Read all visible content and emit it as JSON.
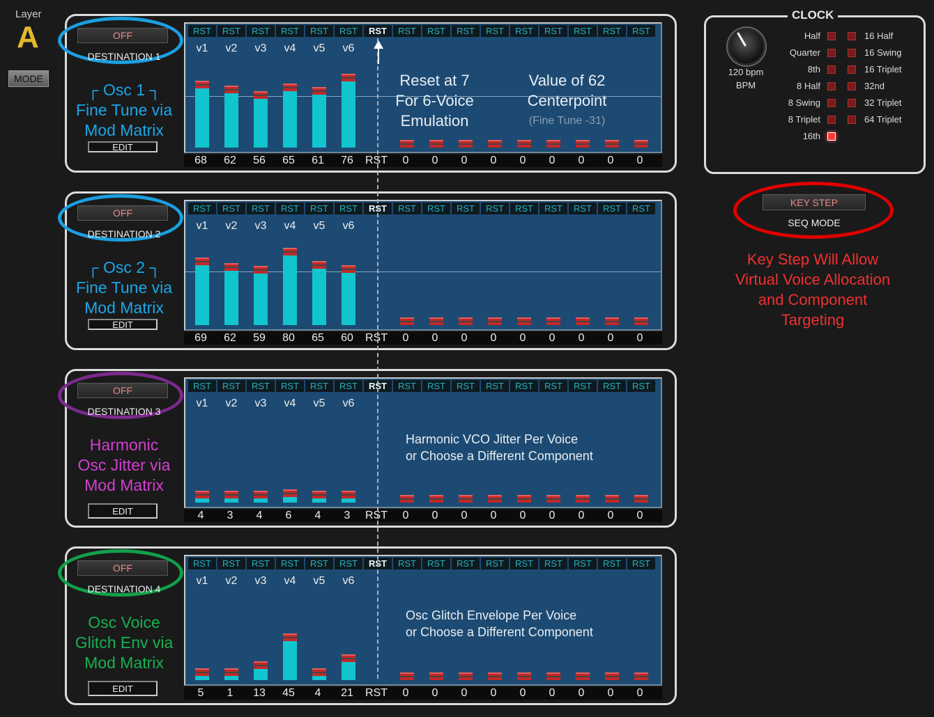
{
  "layer": {
    "label": "Layer",
    "letter": "A",
    "mode_label": "MODE"
  },
  "rst_label": "RST",
  "tracks": [
    {
      "off_label": "OFF",
      "destination": "DESTINATION 1",
      "ring_color": "#1b9fe0",
      "desc_color": "#1ba6e8",
      "desc_lines": [
        "┌ Osc 1 ┐",
        "Fine Tune via",
        "Mod Matrix"
      ],
      "edit_label": "EDIT",
      "voices": [
        "v1",
        "v2",
        "v3",
        "v4",
        "v5",
        "v6"
      ],
      "values": [
        "68",
        "62",
        "56",
        "65",
        "61",
        "76",
        "RST",
        "0",
        "0",
        "0",
        "0",
        "0",
        "0",
        "0",
        "0",
        "0"
      ],
      "annotation_left": [
        "Reset at 7",
        "For 6-Voice",
        "Emulation"
      ],
      "annotation_right": [
        "Value of 62",
        "Centerpoint"
      ],
      "annotation_right_small": "(Fine Tune -31)"
    },
    {
      "off_label": "OFF",
      "destination": "DESTINATION 2",
      "ring_color": "#1b9fe0",
      "desc_color": "#1ba6e8",
      "desc_lines": [
        "┌ Osc 2 ┐",
        "Fine Tune via",
        "Mod Matrix"
      ],
      "edit_label": "EDIT",
      "voices": [
        "v1",
        "v2",
        "v3",
        "v4",
        "v5",
        "v6"
      ],
      "values": [
        "69",
        "62",
        "59",
        "80",
        "65",
        "60",
        "RST",
        "0",
        "0",
        "0",
        "0",
        "0",
        "0",
        "0",
        "0",
        "0"
      ]
    },
    {
      "off_label": "OFF",
      "destination": "DESTINATION 3",
      "ring_color": "#7b2a8c",
      "desc_color": "#d23fd0",
      "desc_lines": [
        "Harmonic",
        "Osc Jitter via",
        "Mod Matrix"
      ],
      "edit_label": "EDIT",
      "voices": [
        "v1",
        "v2",
        "v3",
        "v4",
        "v5",
        "v6"
      ],
      "values": [
        "4",
        "3",
        "4",
        "6",
        "4",
        "3",
        "RST",
        "0",
        "0",
        "0",
        "0",
        "0",
        "0",
        "0",
        "0",
        "0"
      ],
      "annotation_text": [
        "Harmonic VCO Jitter Per Voice",
        "or Choose a Different Component"
      ]
    },
    {
      "off_label": "OFF",
      "destination": "DESTINATION  4",
      "ring_color": "#12a04a",
      "desc_color": "#18b050",
      "desc_lines": [
        "Osc Voice",
        "Glitch Env via",
        "Mod Matrix"
      ],
      "edit_label": "EDIT",
      "voices": [
        "v1",
        "v2",
        "v3",
        "v4",
        "v5",
        "v6"
      ],
      "values": [
        "5",
        "1",
        "13",
        "45",
        "4",
        "21",
        "RST",
        "0",
        "0",
        "0",
        "0",
        "0",
        "0",
        "0",
        "0",
        "0"
      ],
      "annotation_text": [
        "Osc Glitch Envelope Per Voice",
        "or Choose a Different Component"
      ]
    }
  ],
  "bar_levels": [
    [
      0.68,
      0.62,
      0.56,
      0.65,
      0.61,
      0.76
    ],
    [
      0.69,
      0.62,
      0.59,
      0.8,
      0.65,
      0.6
    ],
    [
      0.04,
      0.03,
      0.04,
      0.06,
      0.04,
      0.03
    ],
    [
      0.05,
      0.01,
      0.13,
      0.45,
      0.04,
      0.21
    ]
  ],
  "clock": {
    "title": "CLOCK",
    "bpm_value": "120 bpm",
    "bpm_unit": "BPM",
    "left_options": [
      "Half",
      "Quarter",
      "8th",
      "8 Half",
      "8 Swing",
      "8 Triplet",
      "16th"
    ],
    "right_options": [
      "16 Half",
      "16 Swing",
      "16 Triplet",
      "32nd",
      "32 Triplet",
      "64 Triplet"
    ],
    "selected": "16th"
  },
  "keystep": {
    "button_label": "KEY STEP",
    "seq_mode_label": "SEQ MODE",
    "note_lines": [
      "Key Step Will Allow",
      "Virtual Voice Allocation",
      "and Component",
      "Targeting"
    ]
  }
}
